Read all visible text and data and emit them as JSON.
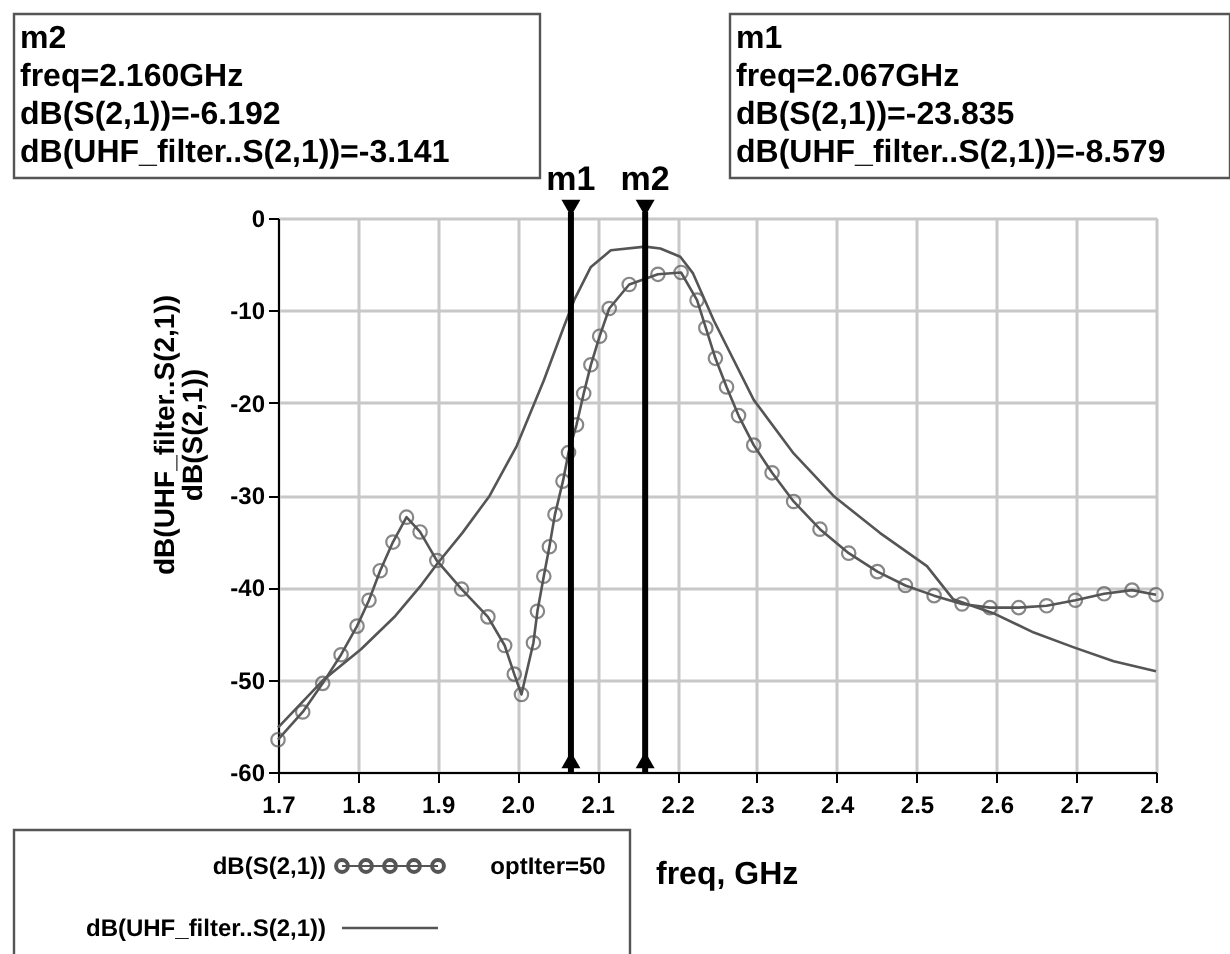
{
  "chart_data": {
    "type": "line",
    "xlabel": "freq, GHz",
    "ylabel": "dB(UHF_filter..S(2,1))\ndB(S(2,1))",
    "xlim": [
      1.7,
      2.8
    ],
    "xticks": [
      1.7,
      1.8,
      1.9,
      {
        "value": 2.0,
        "label": "2.0"
      },
      2.1,
      2.2,
      2.3,
      2.4,
      2.5,
      2.6,
      2.7,
      2.8
    ],
    "ylim": [
      -60,
      0
    ],
    "yticks": [
      0,
      -10,
      -20,
      -30,
      -40,
      -50,
      -60
    ],
    "grid": true,
    "legend": "bottom left",
    "line_style": "solid",
    "series": [
      {
        "name": "dB(S(2,1))",
        "color": "#555555",
        "marker": "circle",
        "x": [
          1.7,
          1.731,
          1.756,
          1.779,
          1.799,
          1.814,
          1.828,
          1.844,
          1.861,
          1.878,
          1.899,
          1.93,
          1.963,
          1.984,
          1.996,
          2.005,
          2.02,
          2.025,
          2.033,
          2.04,
          2.047,
          2.057,
          2.064,
          2.074,
          2.083,
          2.092,
          2.103,
          2.115,
          2.14,
          2.176,
          2.205,
          2.225,
          2.236,
          2.248,
          2.262,
          2.277,
          2.296,
          2.319,
          2.346,
          2.379,
          2.415,
          2.451,
          2.486,
          2.522,
          2.557,
          2.592,
          2.628,
          2.663,
          2.699,
          2.735,
          2.77,
          2.8
        ],
        "values": [
          -56.5,
          -53.5,
          -50.4,
          -47.3,
          -44.2,
          -41.4,
          -38.2,
          -35.1,
          -32.4,
          -34.0,
          -37.1,
          -40.2,
          -43.2,
          -46.3,
          -49.4,
          -51.6,
          -46.0,
          -42.6,
          -38.8,
          -35.6,
          -32.1,
          -28.5,
          -25.4,
          -22.4,
          -19.0,
          -15.9,
          -12.8,
          -9.8,
          -7.2,
          -6.1,
          -5.9,
          -8.9,
          -11.9,
          -15.2,
          -18.3,
          -21.4,
          -24.6,
          -27.6,
          -30.7,
          -33.7,
          -36.3,
          -38.3,
          -39.8,
          -40.9,
          -41.8,
          -42.2,
          -42.2,
          -42.0,
          -41.4,
          -40.7,
          -40.3,
          -40.8
        ]
      },
      {
        "name": "dB(UHF_filter..S(2,1))",
        "color": "#555555",
        "marker": "none",
        "x": [
          1.7,
          1.756,
          1.804,
          1.847,
          1.88,
          1.899,
          1.931,
          1.965,
          1.999,
          2.033,
          2.058,
          2.071,
          2.092,
          2.117,
          2.16,
          2.179,
          2.204,
          2.22,
          2.246,
          2.296,
          2.346,
          2.396,
          2.454,
          2.513,
          2.546,
          2.596,
          2.647,
          2.697,
          2.747,
          2.8
        ],
        "values": [
          -55.2,
          -50.1,
          -46.7,
          -43.1,
          -39.7,
          -37.5,
          -34.1,
          -30.1,
          -24.7,
          -17.6,
          -11.8,
          -8.9,
          -5.3,
          -3.5,
          -3.1,
          -3.3,
          -4.2,
          -6.0,
          -11.1,
          -19.7,
          -25.5,
          -30.1,
          -34.1,
          -37.7,
          -41.3,
          -42.8,
          -44.9,
          -46.5,
          -48.0,
          -49.1
        ]
      }
    ],
    "ref_lines": [
      {
        "axis": "x",
        "value": 2.067,
        "label": "m1"
      },
      {
        "axis": "x",
        "value": 2.16,
        "label": "m2"
      }
    ],
    "annotations": [
      "m2\nfreq=2.160GHz\ndB(S(2,1))=-6.192\ndB(UHF_filter..S(2,1))=-3.141",
      "m1\nfreq=2.067GHz\ndB(S(2,1))=-23.835\ndB(UHF_filter..S(2,1))=-8.579",
      "optIter=50"
    ]
  }
}
